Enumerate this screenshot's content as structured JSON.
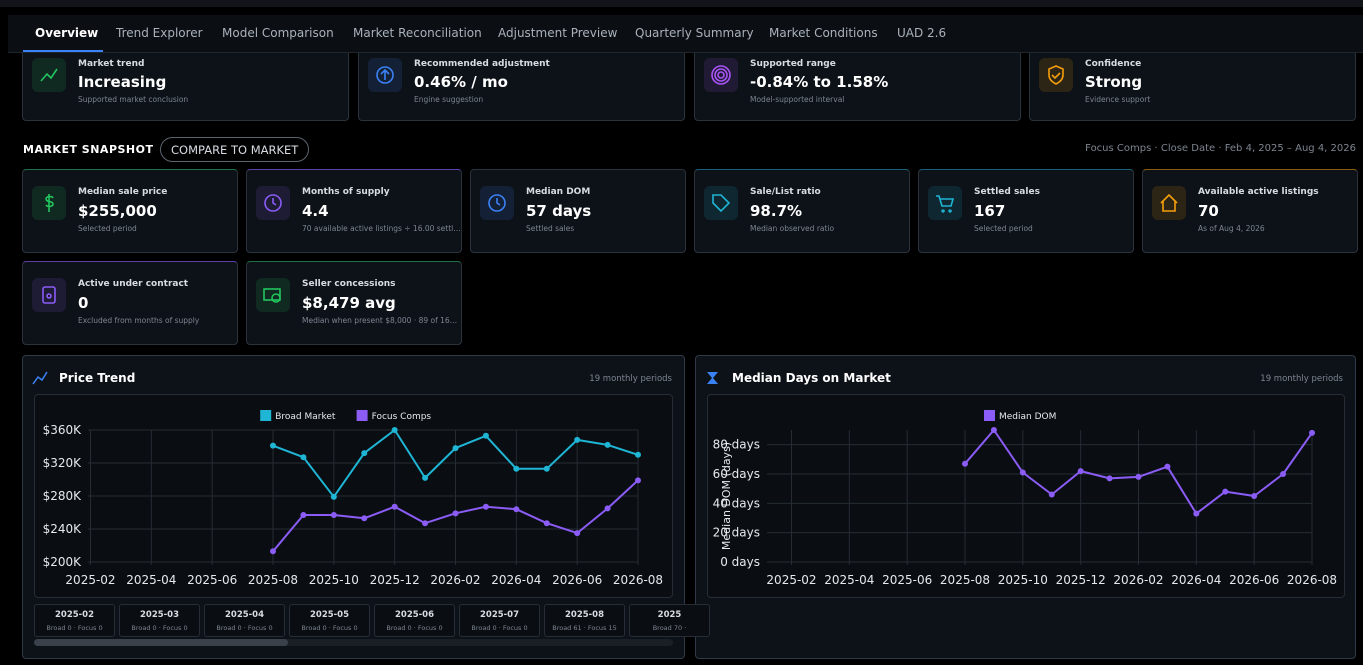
{
  "tabs": [
    "Overview",
    "Trend Explorer",
    "Model Comparison",
    "Market Reconciliation",
    "Adjustment Preview",
    "Quarterly Summary",
    "Market Conditions",
    "UAD 2.6"
  ],
  "summary_cards": [
    {
      "label": "Market trend",
      "value": "Increasing",
      "sub": "Supported market conclusion"
    },
    {
      "label": "Recommended adjustment",
      "value": "0.46% / mo",
      "sub": "Engine suggestion"
    },
    {
      "label": "Supported range",
      "value": "-0.84% to 1.58%",
      "sub": "Model-supported interval"
    },
    {
      "label": "Confidence",
      "value": "Strong",
      "sub": "Evidence support"
    }
  ],
  "snapshot": {
    "title": "MARKET SNAPSHOT",
    "button": "COMPARE TO MARKET",
    "filter": "Focus Comps · Close Date · Feb 4, 2025 – Aug 4, 2026"
  },
  "metric_cards": [
    {
      "label": "Median sale price",
      "value": "$255,000",
      "sub": "Selected period"
    },
    {
      "label": "Months of supply",
      "value": "4.4",
      "sub": "70 available active listings ÷ 16.00 settl…"
    },
    {
      "label": "Median DOM",
      "value": "57 days",
      "sub": "Settled sales"
    },
    {
      "label": "Sale/List ratio",
      "value": "98.7%",
      "sub": "Median observed ratio"
    },
    {
      "label": "Settled sales",
      "value": "167",
      "sub": "Selected period"
    },
    {
      "label": "Available active listings",
      "value": "70",
      "sub": "As of Aug 4, 2026"
    },
    {
      "label": "Active under contract",
      "value": "0",
      "sub": "Excluded from months of supply"
    },
    {
      "label": "Seller concessions",
      "value": "$8,479 avg",
      "sub": "Median when present $8,000 · 89 of 16…"
    }
  ],
  "chart_data": [
    {
      "type": "line",
      "title": "Price Trend",
      "note": "19 monthly periods",
      "categories": [
        "2025-02",
        null,
        "2025-04",
        null,
        "2025-06",
        null,
        "2025-08",
        null,
        "2025-10",
        null,
        "2025-12",
        null,
        "2026-02",
        null,
        "2026-04",
        null,
        "2026-06",
        null,
        "2026-08"
      ],
      "series": [
        {
          "name": "Broad Market",
          "color": "#1fb5d4",
          "values": [
            null,
            null,
            null,
            null,
            null,
            null,
            341000,
            327000,
            279000,
            332000,
            360000,
            302000,
            338000,
            353000,
            313000,
            313000,
            348000,
            342000,
            330000
          ]
        },
        {
          "name": "Focus Comps",
          "color": "#8b5cf6",
          "values": [
            null,
            null,
            null,
            null,
            null,
            null,
            213000,
            257000,
            257000,
            253000,
            267000,
            247000,
            259000,
            267000,
            264000,
            247000,
            235000,
            265000,
            299000
          ]
        }
      ],
      "ylim": [
        200000,
        360000
      ],
      "yticks": [
        {
          "value": 200000,
          "label": "$200K"
        },
        {
          "value": 240000,
          "label": "$240K"
        },
        {
          "value": 280000,
          "label": "$280K"
        },
        {
          "value": 320000,
          "label": "$320K"
        },
        {
          "value": 360000,
          "label": "$360K"
        }
      ],
      "grid": true,
      "legend": "top"
    },
    {
      "type": "line",
      "title": "Median Days on Market",
      "note": "19 monthly periods",
      "y_label": "Median DOM (days)",
      "categories": [
        "2025-02",
        null,
        "2025-04",
        null,
        "2025-06",
        null,
        "2025-08",
        null,
        "2025-10",
        null,
        "2025-12",
        null,
        "2026-02",
        null,
        "2026-04",
        null,
        "2026-06",
        null,
        "2026-08"
      ],
      "series": [
        {
          "name": "Median DOM",
          "color": "#8b5cf6",
          "values": [
            null,
            null,
            null,
            null,
            null,
            null,
            67,
            90,
            61,
            46,
            62,
            57,
            58,
            65,
            33,
            48,
            45,
            60,
            88
          ]
        }
      ],
      "ylim": [
        0,
        90
      ],
      "yticks": [
        {
          "value": 0,
          "label": "0 days"
        },
        {
          "value": 20,
          "label": "20 days"
        },
        {
          "value": 40,
          "label": "40 days"
        },
        {
          "value": 60,
          "label": "60 days"
        },
        {
          "value": 80,
          "label": "80 days"
        }
      ],
      "grid": true,
      "legend": "top"
    }
  ],
  "period_cards": [
    {
      "period": "2025-02",
      "counts": "Broad 0 · Focus 0"
    },
    {
      "period": "2025-03",
      "counts": "Broad 0 · Focus 0"
    },
    {
      "period": "2025-04",
      "counts": "Broad 0 · Focus 0"
    },
    {
      "period": "2025-05",
      "counts": "Broad 0 · Focus 0"
    },
    {
      "period": "2025-06",
      "counts": "Broad 0 · Focus 0"
    },
    {
      "period": "2025-07",
      "counts": "Broad 0 · Focus 0"
    },
    {
      "period": "2025-08",
      "counts": "Broad 61 · Focus 15"
    },
    {
      "period": "2025",
      "counts": "Broad 70 ·"
    }
  ]
}
